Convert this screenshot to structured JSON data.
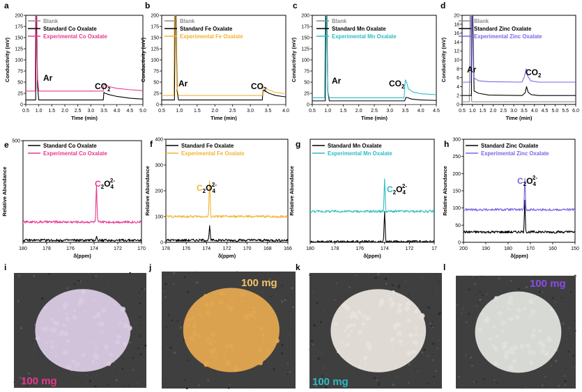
{
  "colors": {
    "blank": "#8c8c8c",
    "standard": "#000000",
    "co": "#e8388f",
    "fe": "#f2b331",
    "mn": "#2bbcc2",
    "zn": "#7a66e6"
  },
  "chart_data": [
    {
      "panel": "a",
      "type": "line",
      "xlabel": "Time (min)",
      "ylabel": "Conductivity (mV)",
      "xlim": [
        0.5,
        5.0
      ],
      "ylim": [
        0,
        200
      ],
      "xticks": [
        "0.5",
        "1.0",
        "1.5",
        "2.0",
        "2.5",
        "3.0",
        "3.5",
        "4.0",
        "4.5",
        "5.0"
      ],
      "yticks": [
        "0",
        "25",
        "50",
        "75",
        "100",
        "125",
        "150",
        "175",
        "200"
      ],
      "series": [
        {
          "name": "Blank",
          "color": "#8c8c8c",
          "x": [
            0.5,
            0.88,
            0.9,
            0.95,
            1.0,
            5.0
          ],
          "y": [
            0,
            0,
            0,
            0,
            0,
            0
          ]
        },
        {
          "name": "Standard Co Oxalate",
          "color": "#000000",
          "x": [
            0.5,
            0.88,
            0.9,
            0.92,
            0.95,
            1.0,
            3.48,
            3.5,
            3.55,
            3.7,
            4.0,
            4.5,
            5.0
          ],
          "y": [
            10,
            10,
            200,
            200,
            40,
            10,
            10,
            27,
            25,
            22,
            18,
            14,
            12
          ]
        },
        {
          "name": "Experimental Co Oxalate",
          "color": "#e8388f",
          "x": [
            0.5,
            0.86,
            0.88,
            0.92,
            0.95,
            1.0,
            3.48,
            3.5,
            3.55,
            3.7,
            4.0,
            4.5,
            5.0
          ],
          "y": [
            30,
            30,
            200,
            200,
            60,
            30,
            30,
            44,
            44,
            40,
            36,
            33,
            31
          ]
        }
      ],
      "annotations": [
        "Ar",
        "CO2"
      ]
    },
    {
      "panel": "b",
      "type": "line",
      "xlabel": "Time (min)",
      "ylabel": "Conductivity (mV)",
      "xlim": [
        0.5,
        4.2
      ],
      "ylim": [
        0,
        200
      ],
      "xticks": [
        "0.5",
        "1.0",
        "1.5",
        "2.0",
        "2.5",
        "3.0",
        "3.5",
        "4.0"
      ],
      "yticks": [
        "0",
        "25",
        "50",
        "75",
        "100",
        "125",
        "150",
        "175",
        "200"
      ],
      "series": [
        {
          "name": "Blank",
          "color": "#8c8c8c",
          "x": [
            0.5,
            4.2
          ],
          "y": [
            0,
            0
          ]
        },
        {
          "name": "Standard Fe Oxalate",
          "color": "#000000",
          "x": [
            0.5,
            0.88,
            0.9,
            0.93,
            0.96,
            1.0,
            3.5,
            3.52,
            3.58,
            3.7,
            3.9,
            4.2
          ],
          "y": [
            10,
            10,
            200,
            200,
            30,
            10,
            10,
            32,
            30,
            25,
            20,
            17
          ]
        },
        {
          "name": "Experimental Fe Oxalate",
          "color": "#f2b331",
          "x": [
            0.5,
            0.86,
            0.88,
            0.92,
            0.95,
            1.0,
            3.5,
            3.52,
            3.58,
            3.7,
            3.9,
            4.2
          ],
          "y": [
            20,
            20,
            200,
            200,
            40,
            20,
            20,
            40,
            38,
            32,
            27,
            24
          ]
        }
      ],
      "annotations": [
        "Ar",
        "CO2"
      ]
    },
    {
      "panel": "c",
      "type": "line",
      "xlabel": "Time (min)",
      "ylabel": "Conductivity (mV)",
      "xlim": [
        0.5,
        4.5
      ],
      "ylim": [
        0,
        200
      ],
      "xticks": [
        "0.5",
        "1.0",
        "1.5",
        "2.0",
        "2.5",
        "3.0",
        "3.5",
        "4.0",
        "4.5"
      ],
      "yticks": [
        "0",
        "25",
        "50",
        "75",
        "100",
        "125",
        "150",
        "175",
        "200"
      ],
      "series": [
        {
          "name": "Blank",
          "color": "#8c8c8c",
          "x": [
            0.5,
            4.5
          ],
          "y": [
            0,
            0
          ]
        },
        {
          "name": "Standard Mn Oxalate",
          "color": "#000000",
          "x": [
            0.5,
            0.92,
            0.94,
            0.97,
            1.0,
            1.05,
            3.48,
            3.52,
            3.58,
            3.7,
            4.0,
            4.5
          ],
          "y": [
            8,
            8,
            200,
            200,
            30,
            8,
            8,
            16,
            15,
            12,
            10,
            9
          ]
        },
        {
          "name": "Experimental Mn Oxalate",
          "color": "#2bbcc2",
          "x": [
            0.5,
            0.9,
            0.92,
            0.96,
            1.0,
            1.05,
            3.46,
            3.5,
            3.54,
            3.6,
            3.75,
            4.0,
            4.5
          ],
          "y": [
            15,
            15,
            200,
            200,
            30,
            15,
            15,
            55,
            50,
            35,
            28,
            24,
            22
          ]
        }
      ],
      "annotations": [
        "Ar",
        "CO2"
      ]
    },
    {
      "panel": "d",
      "type": "line",
      "xlabel": "Time (min)",
      "ylabel": "Conductivity (mV)",
      "xlim": [
        0.5,
        6.0
      ],
      "ylim": [
        0,
        20
      ],
      "xticks": [
        "0.5",
        "1.0",
        "1.5",
        "2.0",
        "2.5",
        "3.0",
        "3.5",
        "4.0",
        "4.5",
        "5.0",
        "5.5",
        "6.0"
      ],
      "yticks": [
        "0",
        "2",
        "4",
        "6",
        "8",
        "10",
        "12",
        "14",
        "16",
        "18",
        "20"
      ],
      "series": [
        {
          "name": "Blank",
          "color": "#8c8c8c",
          "x": [
            0.5,
            0.85,
            0.88,
            0.92,
            0.96,
            1.0,
            6.0
          ],
          "y": [
            0.6,
            0.6,
            20,
            20,
            0.6,
            0.6,
            0.6
          ]
        },
        {
          "name": "Standard Zinc Oxalate",
          "color": "#000000",
          "x": [
            0.5,
            0.95,
            0.98,
            1.02,
            1.08,
            1.3,
            1.8,
            3.4,
            3.55,
            3.62,
            3.7,
            3.85,
            4.2,
            6.0
          ],
          "y": [
            2,
            2,
            20,
            20,
            3,
            2.5,
            2.1,
            2,
            2.6,
            4,
            2.7,
            2.2,
            2,
            2
          ]
        },
        {
          "name": "Experimental Zinc Oxalate",
          "color": "#7a66e6",
          "x": [
            0.5,
            0.93,
            0.96,
            1.0,
            1.06,
            1.3,
            1.8,
            3.4,
            3.52,
            3.6,
            3.68,
            3.82,
            4.2,
            6.0
          ],
          "y": [
            5,
            5,
            20,
            20,
            6,
            5.3,
            5.1,
            5,
            6.3,
            8,
            6.3,
            5.3,
            5,
            5
          ]
        }
      ],
      "annotations": [
        "Ar",
        "CO2"
      ]
    },
    {
      "panel": "e",
      "type": "line",
      "xlabel": "δ(ppm)",
      "ylabel": "Relative Abundance",
      "xlim": [
        180,
        170
      ],
      "ylim": [
        0,
        500
      ],
      "xticks": [
        "180",
        "178",
        "176",
        "174",
        "172",
        "170"
      ],
      "yticks": [
        "500"
      ],
      "series": [
        {
          "name": "Standard Co Oxalate",
          "color": "#000000",
          "baseline": 10,
          "peak_x": 173.8,
          "peak_y": 28
        },
        {
          "name": "Experimental Co Oxalate",
          "color": "#e8388f",
          "baseline": 100,
          "peak_x": 173.8,
          "peak_y": 275
        }
      ],
      "annotations": [
        "C2O42-"
      ]
    },
    {
      "panel": "f",
      "type": "line",
      "xlabel": "δ(ppm)",
      "ylabel": "Relative Abundance",
      "xlim": [
        178,
        166
      ],
      "ylim": [
        0,
        400
      ],
      "xticks": [
        "178",
        "176",
        "174",
        "172",
        "170",
        "168",
        "166"
      ],
      "yticks": [
        "0",
        "100",
        "200",
        "300",
        "400"
      ],
      "series": [
        {
          "name": "Standard Fe Oxalate",
          "color": "#000000",
          "baseline": 8,
          "peak_x": 173.7,
          "peak_y": 65
        },
        {
          "name": "Experimental Fe Oxalate",
          "color": "#f2b331",
          "baseline": 100,
          "peak_x": 173.7,
          "peak_y": 238
        }
      ],
      "annotations": [
        "C2O42-"
      ]
    },
    {
      "panel": "g",
      "type": "line",
      "xlabel": "δ(ppm)",
      "ylabel": "Relative Abundance",
      "xlim": [
        180,
        170
      ],
      "ylim": [
        0,
        500
      ],
      "xticks": [
        "180",
        "178",
        "176",
        "174",
        "172",
        "17"
      ],
      "yticks": [],
      "series": [
        {
          "name": "Standard Mn Oxalate",
          "color": "#000000",
          "baseline": 3,
          "peak_x": 174.0,
          "peak_y": 150
        },
        {
          "name": "Experimental Mn Oxalate",
          "color": "#2bbcc2",
          "baseline": 150,
          "peak_x": 174.0,
          "peak_y": 305
        }
      ],
      "annotations": [
        "C2O42-"
      ]
    },
    {
      "panel": "h",
      "type": "line",
      "xlabel": "δ(ppm)",
      "ylabel": "Relative Abundance",
      "xlim": [
        200,
        150
      ],
      "ylim": [
        0,
        300
      ],
      "xticks": [
        "200",
        "190",
        "180",
        "170",
        "160",
        "150"
      ],
      "yticks": [
        "0",
        "50",
        "100",
        "150",
        "200",
        "250",
        "300"
      ],
      "series": [
        {
          "name": "Standard Zinc Oxalate",
          "color": "#000000",
          "baseline": 30,
          "peak_x": 172.5,
          "peak_y": 120
        },
        {
          "name": "Experimental Zinc Oxalate",
          "color": "#7a66e6",
          "baseline": 95,
          "peak_x": 172.5,
          "peak_y": 185
        }
      ],
      "annotations": [
        "C2O42-"
      ]
    }
  ],
  "panel_letters": [
    "a",
    "b",
    "c",
    "d",
    "e",
    "f",
    "g",
    "h",
    "i",
    "j",
    "k",
    "l"
  ],
  "photos": [
    {
      "letter": "i",
      "label": "100 mg",
      "label_color": "#e8388f",
      "powder": "#d9cbe3"
    },
    {
      "letter": "j",
      "label": "100 mg",
      "label_color": "#f2c46a",
      "powder": "#e3a650"
    },
    {
      "letter": "k",
      "label": "100 mg",
      "label_color": "#2bbcc2",
      "powder": "#e8e3dc"
    },
    {
      "letter": "l",
      "label": "100 mg",
      "label_color": "#8a4de6",
      "powder": "#dfe1dc"
    }
  ]
}
